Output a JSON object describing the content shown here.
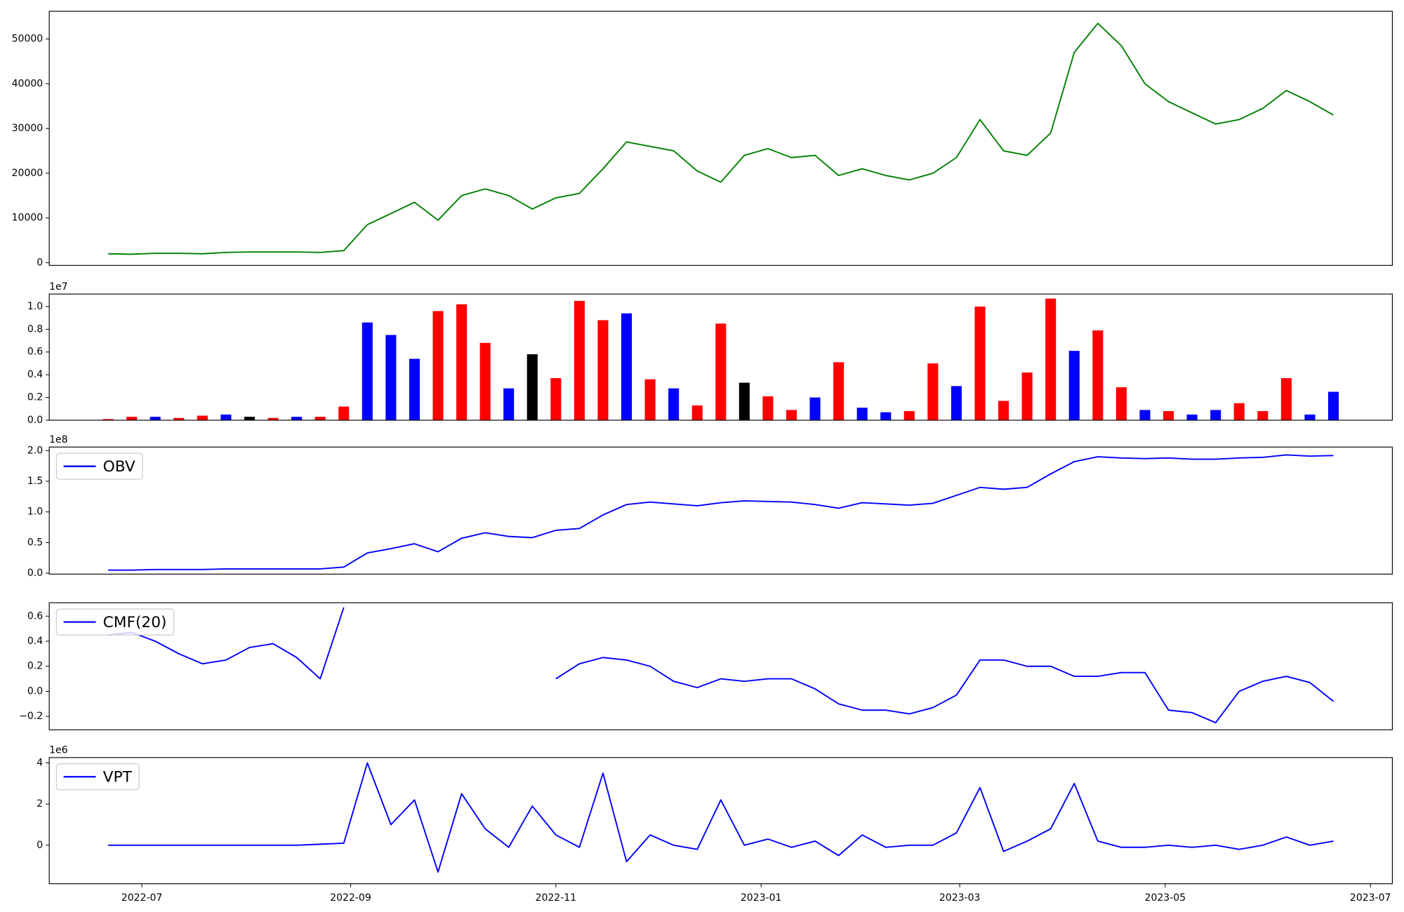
{
  "chart_data": [
    {
      "type": "line",
      "color": "green",
      "xlim": [
        -2.5,
        54.5
      ],
      "ylim": [
        -600,
        56200
      ],
      "yticks": [
        0,
        10000,
        20000,
        30000,
        40000,
        50000
      ],
      "values": [
        2000,
        1900,
        2100,
        2100,
        2000,
        2300,
        2400,
        2400,
        2400,
        2300,
        2700,
        8500,
        11000,
        13500,
        9500,
        15000,
        16500,
        15000,
        12000,
        14500,
        15500,
        21000,
        27000,
        26000,
        25000,
        20500,
        18000,
        24000,
        25500,
        23500,
        24000,
        19500,
        21000,
        19500,
        18500,
        20000,
        23500,
        32000,
        25000,
        24000,
        29000,
        47000,
        53500,
        48500,
        40000,
        36000,
        33500,
        31000,
        32000,
        34500,
        38500,
        36000,
        33000
      ]
    },
    {
      "type": "bar",
      "xlim": [
        -2.5,
        54.5
      ],
      "ylim": [
        0,
        11100000
      ],
      "y_offset_label": "1e7",
      "yticks": [
        {
          "value": 0,
          "label": "0.0"
        },
        {
          "value": 2000000,
          "label": "0.2"
        },
        {
          "value": 4000000,
          "label": "0.4"
        },
        {
          "value": 6000000,
          "label": "0.6"
        },
        {
          "value": 8000000,
          "label": "0.8"
        },
        {
          "value": 10000000,
          "label": "1.0"
        }
      ],
      "values": [
        100000,
        300000,
        300000,
        200000,
        400000,
        500000,
        300000,
        200000,
        300000,
        300000,
        1200000,
        8600000,
        7500000,
        5400000,
        9600000,
        10200000,
        6800000,
        2800000,
        5800000,
        3700000,
        10500000,
        8800000,
        9400000,
        3600000,
        2800000,
        1300000,
        8500000,
        3300000,
        2100000,
        900000,
        2000000,
        5100000,
        1100000,
        700000,
        800000,
        5000000,
        3000000,
        10000000,
        1700000,
        4200000,
        10700000,
        6100000,
        7900000,
        2900000,
        900000,
        800000,
        500000,
        900000,
        1500000,
        800000,
        3700000,
        500000,
        2500000
      ],
      "colors": [
        "red",
        "red",
        "blue",
        "red",
        "red",
        "blue",
        "black",
        "red",
        "blue",
        "red",
        "red",
        "blue",
        "blue",
        "blue",
        "red",
        "red",
        "red",
        "blue",
        "black",
        "red",
        "red",
        "red",
        "blue",
        "red",
        "blue",
        "red",
        "red",
        "black",
        "red",
        "red",
        "blue",
        "red",
        "blue",
        "blue",
        "red",
        "red",
        "blue",
        "red",
        "red",
        "red",
        "red",
        "blue",
        "red",
        "red",
        "blue",
        "red",
        "blue",
        "blue",
        "red",
        "red",
        "red",
        "blue",
        "blue"
      ]
    },
    {
      "type": "line",
      "xlim": [
        -2.5,
        54.5
      ],
      "ylim": [
        -1500000,
        205800000
      ],
      "y_offset_label": "1e8",
      "legend": "upper left",
      "yticks": [
        {
          "value": 0,
          "label": "0.0"
        },
        {
          "value": 50000000,
          "label": "0.5"
        },
        {
          "value": 100000000,
          "label": "1.0"
        },
        {
          "value": 150000000,
          "label": "1.5"
        },
        {
          "value": 200000000,
          "label": "2.0"
        }
      ],
      "series": [
        {
          "name": "OBV",
          "color": "blue",
          "values": [
            5000000,
            5000000,
            6000000,
            6000000,
            6000000,
            7000000,
            7000000,
            7000000,
            7000000,
            7000000,
            10000000,
            33000000,
            40000000,
            48000000,
            35000000,
            57000000,
            66000000,
            60000000,
            58000000,
            70000000,
            73000000,
            95000000,
            112000000,
            116000000,
            113000000,
            110000000,
            115000000,
            118000000,
            117000000,
            116000000,
            112000000,
            106000000,
            115000000,
            113000000,
            111000000,
            114000000,
            127000000,
            140000000,
            137000000,
            140000000,
            162000000,
            182000000,
            190000000,
            188000000,
            187000000,
            188000000,
            186000000,
            186000000,
            188000000,
            189000000,
            193000000,
            191000000,
            192000000
          ]
        }
      ]
    },
    {
      "type": "line",
      "xlim": [
        -2.5,
        54.5
      ],
      "ylim": [
        -0.307,
        0.707
      ],
      "legend": "upper left",
      "yticks": [
        {
          "value": -0.2,
          "label": "−0.2"
        },
        {
          "value": 0,
          "label": "0.0"
        },
        0.2,
        0.4,
        0.6
      ],
      "series": [
        {
          "name": "CMF(20)",
          "color": "blue",
          "values": [
            0.45,
            0.47,
            0.4,
            0.3,
            0.22,
            0.25,
            0.35,
            0.38,
            0.27,
            0.1,
            0.67,
            null,
            null,
            null,
            null,
            null,
            null,
            null,
            null,
            0.1,
            0.22,
            0.27,
            0.25,
            0.2,
            0.08,
            0.03,
            0.1,
            0.08,
            0.1,
            0.1,
            0.02,
            -0.1,
            -0.15,
            -0.15,
            -0.18,
            -0.13,
            -0.03,
            0.25,
            0.25,
            0.2,
            0.2,
            0.12,
            0.12,
            0.15,
            0.15,
            -0.15,
            -0.17,
            -0.25,
            0.0,
            0.08,
            0.12,
            0.07,
            -0.08
          ]
        }
      ]
    },
    {
      "type": "line",
      "xlim": [
        -2.5,
        54.5
      ],
      "ylim": [
        -1870000,
        4260000
      ],
      "y_offset_label": "1e6",
      "legend": "upper left",
      "yticks": [
        {
          "value": 0,
          "label": "0"
        },
        {
          "value": 2000000,
          "label": "2"
        },
        {
          "value": 4000000,
          "label": "4"
        }
      ],
      "xticks": [
        {
          "value": 1.43,
          "label": "2022-07"
        },
        {
          "value": 10.29,
          "label": "2022-09"
        },
        {
          "value": 19.0,
          "label": "2022-11"
        },
        {
          "value": 27.71,
          "label": "2023-01"
        },
        {
          "value": 36.14,
          "label": "2023-03"
        },
        {
          "value": 44.86,
          "label": "2023-05"
        },
        {
          "value": 53.57,
          "label": "2023-07"
        }
      ],
      "series": [
        {
          "name": "VPT",
          "color": "blue",
          "values": [
            0,
            0,
            0,
            0,
            0,
            0,
            0,
            0,
            0,
            50000,
            100000,
            4000000,
            1000000,
            2200000,
            -1300000,
            2500000,
            800000,
            -100000,
            1900000,
            500000,
            -100000,
            3500000,
            -800000,
            500000,
            0,
            -200000,
            2200000,
            0,
            300000,
            -100000,
            200000,
            -500000,
            500000,
            -100000,
            0,
            0,
            600000,
            2800000,
            -300000,
            200000,
            800000,
            3000000,
            200000,
            -100000,
            -100000,
            0,
            -100000,
            0,
            -200000,
            0,
            400000,
            0,
            200000
          ]
        }
      ]
    }
  ]
}
